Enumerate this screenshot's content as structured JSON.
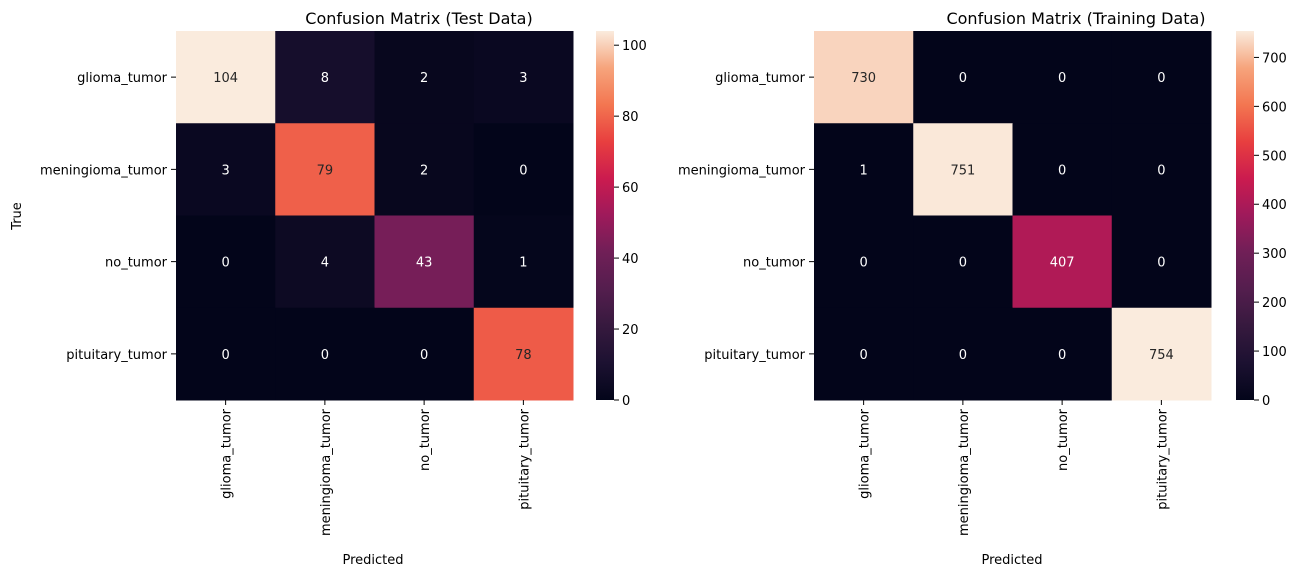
{
  "chart_data": [
    {
      "type": "heatmap",
      "title": "Confusion Matrix (Test Data)",
      "xlabel": "Predicted",
      "ylabel": "True",
      "x_categories": [
        "glioma_tumor",
        "meningioma_tumor",
        "no_tumor",
        "pituitary_tumor"
      ],
      "y_categories": [
        "glioma_tumor",
        "meningioma_tumor",
        "no_tumor",
        "pituitary_tumor"
      ],
      "values": [
        [
          104,
          8,
          2,
          3
        ],
        [
          3,
          79,
          2,
          0
        ],
        [
          0,
          4,
          43,
          1
        ],
        [
          0,
          0,
          0,
          78
        ]
      ],
      "colorbar": {
        "range": [
          0,
          104
        ],
        "ticks": [
          "0",
          "20",
          "40",
          "60",
          "80",
          "100"
        ],
        "tick_values": [
          0,
          20,
          40,
          60,
          80,
          100
        ]
      },
      "colormap": "rocket"
    },
    {
      "type": "heatmap",
      "title": "Confusion Matrix (Training Data)",
      "xlabel": "Predicted",
      "ylabel": "",
      "x_categories": [
        "glioma_tumor",
        "meningioma_tumor",
        "no_tumor",
        "pituitary_tumor"
      ],
      "y_categories": [
        "glioma_tumor",
        "meningioma_tumor",
        "no_tumor",
        "pituitary_tumor"
      ],
      "values": [
        [
          730,
          0,
          0,
          0
        ],
        [
          1,
          751,
          0,
          0
        ],
        [
          0,
          0,
          407,
          0
        ],
        [
          0,
          0,
          0,
          754
        ]
      ],
      "colorbar": {
        "range": [
          0,
          754
        ],
        "ticks": [
          "0",
          "100",
          "200",
          "300",
          "400",
          "500",
          "600",
          "700"
        ],
        "tick_values": [
          0,
          100,
          200,
          300,
          400,
          500,
          600,
          700
        ]
      },
      "colormap": "rocket"
    }
  ]
}
